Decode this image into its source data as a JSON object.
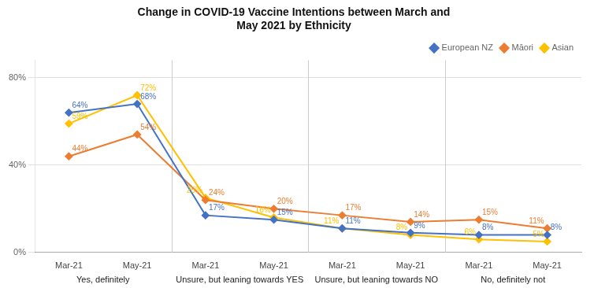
{
  "chart_data": {
    "type": "line",
    "title": "Change in COVID-19 Vaccine Intentions between March and\nMay 2021 by Ethnicity",
    "categories": [
      "Mar-21",
      "May-21",
      "Mar-21",
      "May-21",
      "Mar-21",
      "May-21",
      "Mar-21",
      "May-21"
    ],
    "groups": [
      "Yes, definitely",
      "Unsure, but leaning towards YES",
      "Unsure, but leaning towards NO",
      "No, definitely not"
    ],
    "series": [
      {
        "name": "European NZ",
        "color": "#4472C4",
        "marker": "diamond",
        "values": [
          64,
          68,
          17,
          15,
          11,
          9,
          8,
          8
        ],
        "value_labels": [
          "64%",
          "68%",
          "17%",
          "15%",
          "11%",
          "9%",
          "8%",
          "8%"
        ]
      },
      {
        "name": "Māori",
        "color": "#ED7D31",
        "marker": "diamond",
        "values": [
          44,
          54,
          24,
          20,
          17,
          14,
          15,
          11
        ],
        "value_labels": [
          "44%",
          "54%",
          "24%",
          "20%",
          "17%",
          "14%",
          "15%",
          "11%"
        ]
      },
      {
        "name": "Asian",
        "color": "#FFC000",
        "marker": "diamond",
        "values": [
          59,
          72,
          25,
          16,
          11,
          8,
          6,
          5
        ],
        "value_labels": [
          "59%",
          "72%",
          "25%",
          "16%",
          "11%",
          "8%",
          "6%",
          "5%"
        ]
      }
    ],
    "ylim": [
      0,
      88
    ],
    "yticks": [
      {
        "value": 0,
        "label": "0%"
      },
      {
        "value": 40,
        "label": "40%"
      },
      {
        "value": 80,
        "label": "80%"
      }
    ],
    "grid": true,
    "legend": "top right",
    "data_labels": true
  }
}
